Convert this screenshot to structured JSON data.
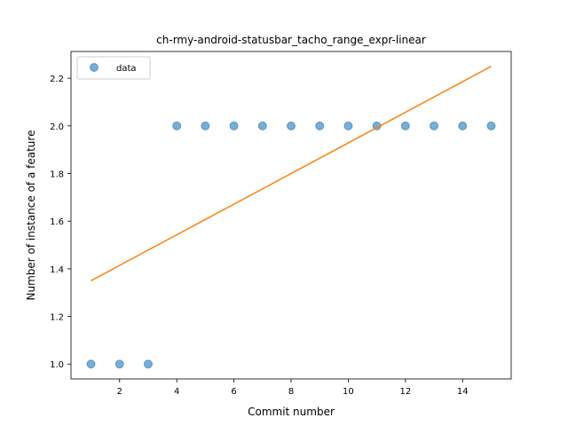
{
  "chart_data": {
    "type": "scatter",
    "title": "ch-rmy-android-statusbar_tacho_range_expr-linear",
    "xlabel": "Commit number",
    "ylabel": "Number of instance of a feature",
    "xlim": [
      0.3,
      15.7
    ],
    "ylim": [
      0.9375,
      2.3125
    ],
    "xticks": [
      2,
      4,
      6,
      8,
      10,
      12,
      14
    ],
    "yticks": [
      1.0,
      1.2,
      1.4,
      1.6,
      1.8,
      2.0,
      2.2
    ],
    "grid": false,
    "legend": {
      "placement": "top-left",
      "entries": [
        "data"
      ]
    },
    "series": [
      {
        "name": "data",
        "kind": "scatter",
        "color": "#1f77b4",
        "x": [
          1,
          2,
          3,
          4,
          5,
          6,
          7,
          8,
          9,
          10,
          11,
          12,
          13,
          14,
          15
        ],
        "y": [
          1,
          1,
          1,
          2,
          2,
          2,
          2,
          2,
          2,
          2,
          2,
          2,
          2,
          2,
          2
        ]
      },
      {
        "kind": "line",
        "color": "#ff7f0e",
        "x": [
          1,
          15
        ],
        "y": [
          1.35,
          2.25
        ]
      }
    ]
  }
}
